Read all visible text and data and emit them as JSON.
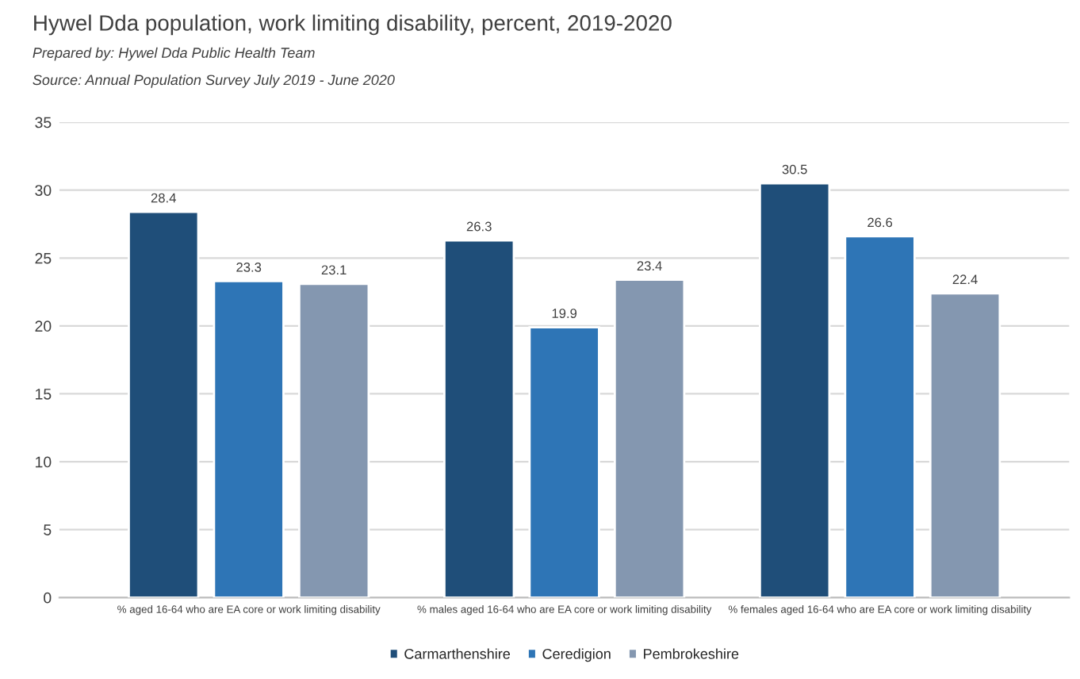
{
  "chart_data": {
    "type": "bar",
    "title": "Hywel Dda population, work limiting disability, percent, 2019-2020",
    "annotations": [
      "Prepared by: Hywel Dda Public Health Team",
      "Source: Annual Population Survey July 2019 - June 2020"
    ],
    "categories": [
      "% aged 16-64 who are EA core or work limiting disability",
      "% males aged 16-64 who are EA core or work limiting disability",
      "% females aged 16-64 who are EA core or work limiting disability"
    ],
    "series": [
      {
        "name": "Carmarthenshire",
        "color": "#1f4e79",
        "values": [
          28.4,
          26.3,
          30.5
        ]
      },
      {
        "name": "Ceredigion",
        "color": "#2e75b6",
        "values": [
          23.3,
          19.9,
          26.6
        ]
      },
      {
        "name": "Pembrokeshire",
        "color": "#8497b0",
        "values": [
          23.1,
          23.4,
          22.4
        ]
      }
    ],
    "ylim": [
      0,
      35
    ],
    "yticks": [
      0,
      5,
      10,
      15,
      20,
      25,
      30,
      35
    ],
    "grid": "y",
    "legend": "bottom",
    "data_labels": true
  }
}
